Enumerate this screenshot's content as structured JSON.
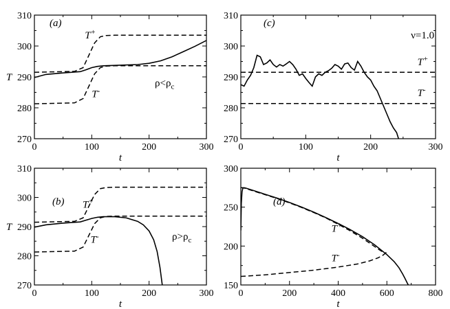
{
  "chart_data": [
    {
      "id": "a",
      "type": "line",
      "panel_label": "(a)",
      "xlabel": "t",
      "ylabel": "T",
      "xlim": [
        0,
        300
      ],
      "ylim": [
        270,
        310
      ],
      "xticks": [
        0,
        100,
        200,
        300
      ],
      "yticks": [
        270,
        280,
        290,
        300,
        310
      ],
      "xtick_labels": [
        "0",
        "100",
        "200",
        "300"
      ],
      "ytick_labels": [
        "270",
        "280",
        "290",
        "300",
        "310"
      ],
      "series": [
        {
          "name": "T+",
          "style": "dashed",
          "x": [
            0,
            70,
            85,
            95,
            105,
            115,
            125,
            140,
            300
          ],
          "y": [
            291.5,
            291.8,
            293,
            297,
            301,
            303,
            303.4,
            303.5,
            303.5
          ]
        },
        {
          "name": "T-",
          "style": "dashed",
          "x": [
            0,
            70,
            85,
            95,
            105,
            115,
            125,
            140,
            300
          ],
          "y": [
            281.3,
            281.6,
            283,
            287,
            291,
            293,
            293.5,
            293.6,
            293.6
          ]
        },
        {
          "name": "T",
          "style": "solid",
          "x": [
            0,
            20,
            50,
            80,
            90,
            100,
            110,
            120,
            150,
            180,
            200,
            220,
            240,
            260,
            280,
            300
          ],
          "y": [
            289.8,
            290.8,
            291.3,
            291.7,
            292.3,
            293,
            293.4,
            293.6,
            293.8,
            294,
            294.4,
            295.2,
            296.5,
            298.2,
            299.9,
            301.8
          ]
        }
      ],
      "annotations": [
        {
          "id": "tplus",
          "base": "T",
          "sup": "+",
          "x": 88,
          "y": 302.5
        },
        {
          "id": "tminus",
          "base": "T",
          "sup": "-",
          "x": 100,
          "y": 283.5
        },
        {
          "id": "rho",
          "text": "ρ<ρ",
          "sub": "c",
          "x": 210,
          "y": 287
        }
      ]
    },
    {
      "id": "b",
      "type": "line",
      "panel_label": "(b)",
      "xlabel": "t",
      "ylabel": "T",
      "xlim": [
        0,
        300
      ],
      "ylim": [
        270,
        310
      ],
      "xticks": [
        0,
        100,
        200,
        300
      ],
      "yticks": [
        270,
        280,
        290,
        300,
        310
      ],
      "xtick_labels": [
        "0",
        "100",
        "200",
        "300"
      ],
      "ytick_labels": [
        "270",
        "280",
        "290",
        "300",
        "310"
      ],
      "series": [
        {
          "name": "T+",
          "style": "dashed",
          "x": [
            0,
            70,
            85,
            95,
            105,
            115,
            125,
            140,
            300
          ],
          "y": [
            291.5,
            291.8,
            293,
            297,
            301,
            303,
            303.4,
            303.5,
            303.5
          ]
        },
        {
          "name": "T-",
          "style": "dashed",
          "x": [
            0,
            70,
            85,
            95,
            105,
            115,
            125,
            140,
            300
          ],
          "y": [
            281.3,
            281.6,
            283,
            287,
            291,
            293,
            293.5,
            293.6,
            293.6
          ]
        },
        {
          "name": "T",
          "style": "solid",
          "x": [
            0,
            20,
            50,
            80,
            90,
            100,
            110,
            120,
            140,
            160,
            180,
            190,
            200,
            208,
            214,
            219,
            223
          ],
          "y": [
            289.8,
            290.6,
            291.2,
            291.6,
            292.2,
            292.8,
            293.2,
            293.4,
            293.4,
            293,
            291.8,
            290.6,
            288.5,
            285.5,
            281.5,
            276,
            270
          ]
        }
      ],
      "annotations": [
        {
          "id": "tplus",
          "base": "T",
          "sup": "+",
          "x": 84,
          "y": 296.5
        },
        {
          "id": "tminus",
          "base": "T",
          "sup": "-",
          "x": 98,
          "y": 284.5
        },
        {
          "id": "rho",
          "text": "ρ>ρ",
          "sub": "c",
          "x": 240,
          "y": 285.5
        }
      ]
    },
    {
      "id": "c",
      "type": "line",
      "panel_label": "(c)",
      "xlabel": "t",
      "ylabel": "",
      "xlim": [
        0,
        300
      ],
      "ylim": [
        270,
        310
      ],
      "xticks": [
        0,
        100,
        200,
        300
      ],
      "yticks": [
        270,
        280,
        290,
        300,
        310
      ],
      "xtick_labels": [
        "0",
        "100",
        "200",
        "300"
      ],
      "ytick_labels": [
        "270",
        "280",
        "290",
        "300",
        "310"
      ],
      "series": [
        {
          "name": "T+",
          "style": "dashed",
          "x": [
            0,
            300
          ],
          "y": [
            291.5,
            291.5
          ]
        },
        {
          "name": "T-",
          "style": "dashed",
          "x": [
            0,
            300
          ],
          "y": [
            281.4,
            281.4
          ]
        },
        {
          "name": "T",
          "style": "solid",
          "x": [
            0,
            5,
            10,
            15,
            20,
            25,
            30,
            35,
            40,
            45,
            50,
            55,
            60,
            65,
            70,
            75,
            80,
            85,
            90,
            95,
            100,
            105,
            110,
            115,
            120,
            125,
            130,
            135,
            140,
            145,
            150,
            155,
            160,
            165,
            170,
            175,
            180,
            185,
            190,
            195,
            200,
            205,
            210,
            215,
            220,
            225,
            230,
            235,
            240,
            243
          ],
          "y": [
            287.5,
            287,
            289,
            290.5,
            293,
            297,
            296.5,
            294,
            294.5,
            295.5,
            294,
            293.2,
            294,
            293.5,
            294.2,
            295,
            294,
            292.5,
            290.5,
            291,
            289.5,
            288.2,
            287,
            290,
            291,
            290.5,
            291.5,
            292,
            292.8,
            294,
            293.5,
            292.5,
            294.2,
            294.5,
            293,
            292.2,
            295,
            293.5,
            291.5,
            290,
            289,
            287,
            285.5,
            283,
            280.5,
            278,
            275.5,
            273.5,
            272,
            270
          ]
        }
      ],
      "annotations": [
        {
          "id": "nu",
          "text": "ν=1.0",
          "x": 262,
          "y": 302.5
        },
        {
          "id": "tplus",
          "base": "T",
          "sup": "+",
          "x": 272,
          "y": 293.8
        },
        {
          "id": "tminus",
          "base": "T",
          "sup": "-",
          "x": 272,
          "y": 283.8
        }
      ]
    },
    {
      "id": "d",
      "type": "line",
      "panel_label": "(d)",
      "xlabel": "t",
      "ylabel": "",
      "xlim": [
        0,
        800
      ],
      "ylim": [
        150,
        300
      ],
      "xticks": [
        0,
        200,
        400,
        600,
        800
      ],
      "yticks": [
        150,
        200,
        250,
        300
      ],
      "xtick_labels": [
        "0",
        "200",
        "400",
        "600",
        "800"
      ],
      "ytick_labels": [
        "150",
        "200",
        "250",
        "300"
      ],
      "series": [
        {
          "name": "T+",
          "style": "dashed",
          "x": [
            0,
            8,
            20,
            50,
            100,
            150,
            200,
            250,
            300,
            350,
            400,
            450,
            500,
            540,
            565,
            585,
            595,
            597
          ],
          "y": [
            275,
            275,
            274,
            271,
            266,
            261,
            255.5,
            249.5,
            243,
            236,
            228,
            219.5,
            210,
            201.5,
            196,
            192,
            190.5,
            192
          ]
        },
        {
          "name": "T-",
          "style": "dashed",
          "x": [
            0,
            100,
            200,
            300,
            400,
            480,
            530,
            565,
            585,
            595,
            597
          ],
          "y": [
            161,
            163,
            166,
            169,
            173,
            177,
            181,
            185,
            188.5,
            191,
            192
          ]
        },
        {
          "name": "T",
          "style": "solid",
          "x": [
            0,
            2,
            5,
            8,
            12,
            20,
            50,
            100,
            150,
            200,
            250,
            300,
            350,
            400,
            450,
            500,
            550,
            600,
            630,
            650,
            665,
            675,
            683,
            688
          ],
          "y": [
            220,
            255,
            270,
            274,
            275,
            274.5,
            271.5,
            266.5,
            261.5,
            256,
            250,
            243.5,
            236.5,
            229,
            221,
            212,
            201.5,
            189,
            180,
            172,
            164,
            158,
            153,
            150
          ]
        }
      ],
      "annotations": [
        {
          "id": "tplus",
          "base": "T",
          "sup": "+",
          "x": 372,
          "y": 218.5
        },
        {
          "id": "tminus",
          "base": "T",
          "sup": "-",
          "x": 372,
          "y": 180.5
        }
      ]
    }
  ]
}
